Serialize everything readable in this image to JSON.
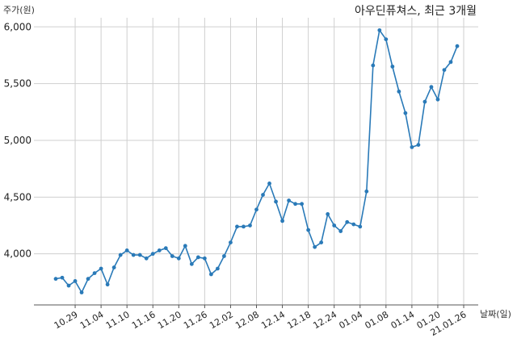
{
  "chart_data": {
    "type": "line",
    "title": "아우딘퓨쳐스, 최근 3개월",
    "ylabel": "주가(원)",
    "xlabel": "날짜(일)",
    "ylim": [
      3550,
      6080
    ],
    "grid": true,
    "y_ticks": [
      4000,
      4500,
      5000,
      5500,
      6000
    ],
    "y_tick_labels": [
      "4,000",
      "4,500",
      "5,000",
      "5,500",
      "6,000"
    ],
    "x_ticks": [
      {
        "label": "10.29",
        "index": 3
      },
      {
        "label": "11.04",
        "index": 7
      },
      {
        "label": "11.10",
        "index": 11
      },
      {
        "label": "11.16",
        "index": 15
      },
      {
        "label": "11.20",
        "index": 19
      },
      {
        "label": "11.26",
        "index": 23
      },
      {
        "label": "12.02",
        "index": 27
      },
      {
        "label": "12.08",
        "index": 31
      },
      {
        "label": "12.14",
        "index": 35
      },
      {
        "label": "12.18",
        "index": 39
      },
      {
        "label": "12.24",
        "index": 43
      },
      {
        "label": "01.04",
        "index": 47
      },
      {
        "label": "01.08",
        "index": 51
      },
      {
        "label": "01.14",
        "index": 55
      },
      {
        "label": "01.20",
        "index": 59
      },
      {
        "label": "21.01.26",
        "index": 63
      }
    ],
    "series": [
      {
        "color": "#2a7ab8",
        "values": [
          3780,
          3790,
          3720,
          3760,
          3660,
          3780,
          3830,
          3870,
          3730,
          3880,
          3990,
          4030,
          3990,
          3990,
          3960,
          4000,
          4030,
          4050,
          3980,
          3960,
          4070,
          3910,
          3970,
          3960,
          3820,
          3870,
          3980,
          4100,
          4240,
          4240,
          4250,
          4390,
          4520,
          4620,
          4460,
          4290,
          4470,
          4440,
          4440,
          4210,
          4060,
          4100,
          4350,
          4250,
          4200,
          4280,
          4260,
          4240,
          4550,
          5660,
          5970,
          5890,
          5650,
          5430,
          5240,
          4940,
          4960,
          5340,
          5470,
          5360,
          5620,
          5690,
          5830
        ]
      }
    ]
  }
}
